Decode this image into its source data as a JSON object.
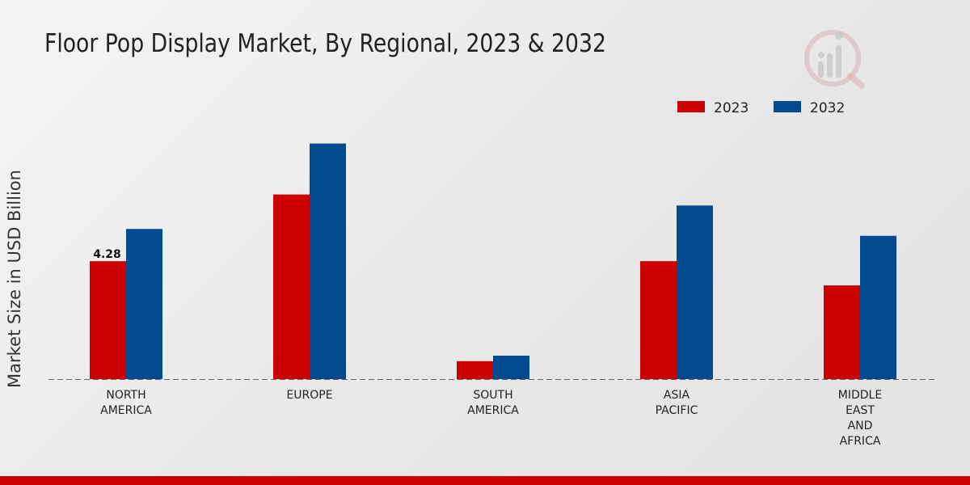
{
  "chart_data": {
    "type": "bar",
    "title": "Floor Pop Display Market, By Regional, 2023 & 2032",
    "ylabel": "Market Size in USD Billion",
    "xlabel": "",
    "categories": [
      [
        "NORTH",
        "AMERICA"
      ],
      [
        "EUROPE"
      ],
      [
        "SOUTH",
        "AMERICA"
      ],
      [
        "ASIA",
        "PACIFIC"
      ],
      [
        "MIDDLE",
        "EAST",
        "AND",
        "AFRICA"
      ]
    ],
    "series": [
      {
        "name": "2023",
        "color": "#cc0000",
        "values": [
          4.28,
          6.7,
          0.65,
          4.28,
          3.4
        ]
      },
      {
        "name": "2032",
        "color": "#004a8f",
        "values": [
          5.45,
          8.55,
          0.85,
          6.3,
          5.2
        ]
      }
    ],
    "data_labels": [
      {
        "series": 0,
        "index": 0,
        "text": "4.28"
      }
    ],
    "ylim": [
      0,
      11.5
    ],
    "grid": false,
    "legend_position": "top-right"
  },
  "colors": {
    "accent": "#cc0000",
    "brand": "#004a8f"
  }
}
